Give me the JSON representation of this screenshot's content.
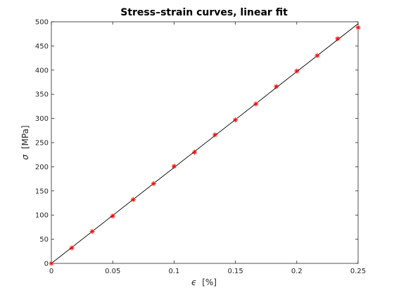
{
  "chart_data": {
    "type": "scatter",
    "title": "Stress–strain curves, linear fit",
    "xlabel_symbol": "ϵ",
    "xlabel_unit": "[%]",
    "ylabel_symbol": "σ",
    "ylabel_unit": "[MPa]",
    "xlim": [
      0,
      0.25
    ],
    "ylim": [
      0,
      500
    ],
    "xticks": [
      0,
      0.05,
      0.1,
      0.15,
      0.2,
      0.25
    ],
    "xtick_labels": [
      "0",
      "0.05",
      "0.1",
      "0.15",
      "0.2",
      "0.25"
    ],
    "yticks": [
      0,
      50,
      100,
      150,
      200,
      250,
      300,
      350,
      400,
      450,
      500
    ],
    "ytick_labels": [
      "0",
      "50",
      "100",
      "150",
      "200",
      "250",
      "300",
      "350",
      "400",
      "450",
      "500"
    ],
    "grid": false,
    "series": [
      {
        "kind": "markers",
        "marker": "asterisk",
        "color": "#ff0000",
        "x": [
          0,
          0.0167,
          0.0333,
          0.05,
          0.0667,
          0.0833,
          0.1,
          0.1167,
          0.1333,
          0.15,
          0.1667,
          0.1833,
          0.2,
          0.2167,
          0.2333,
          0.25
        ],
        "y": [
          0,
          32,
          66,
          98,
          132,
          165,
          201,
          230,
          266,
          297,
          330,
          366,
          398,
          430,
          465,
          488
        ]
      },
      {
        "kind": "line",
        "color": "#000000",
        "x": [
          0,
          0.25
        ],
        "y": [
          0,
          496
        ]
      }
    ]
  }
}
